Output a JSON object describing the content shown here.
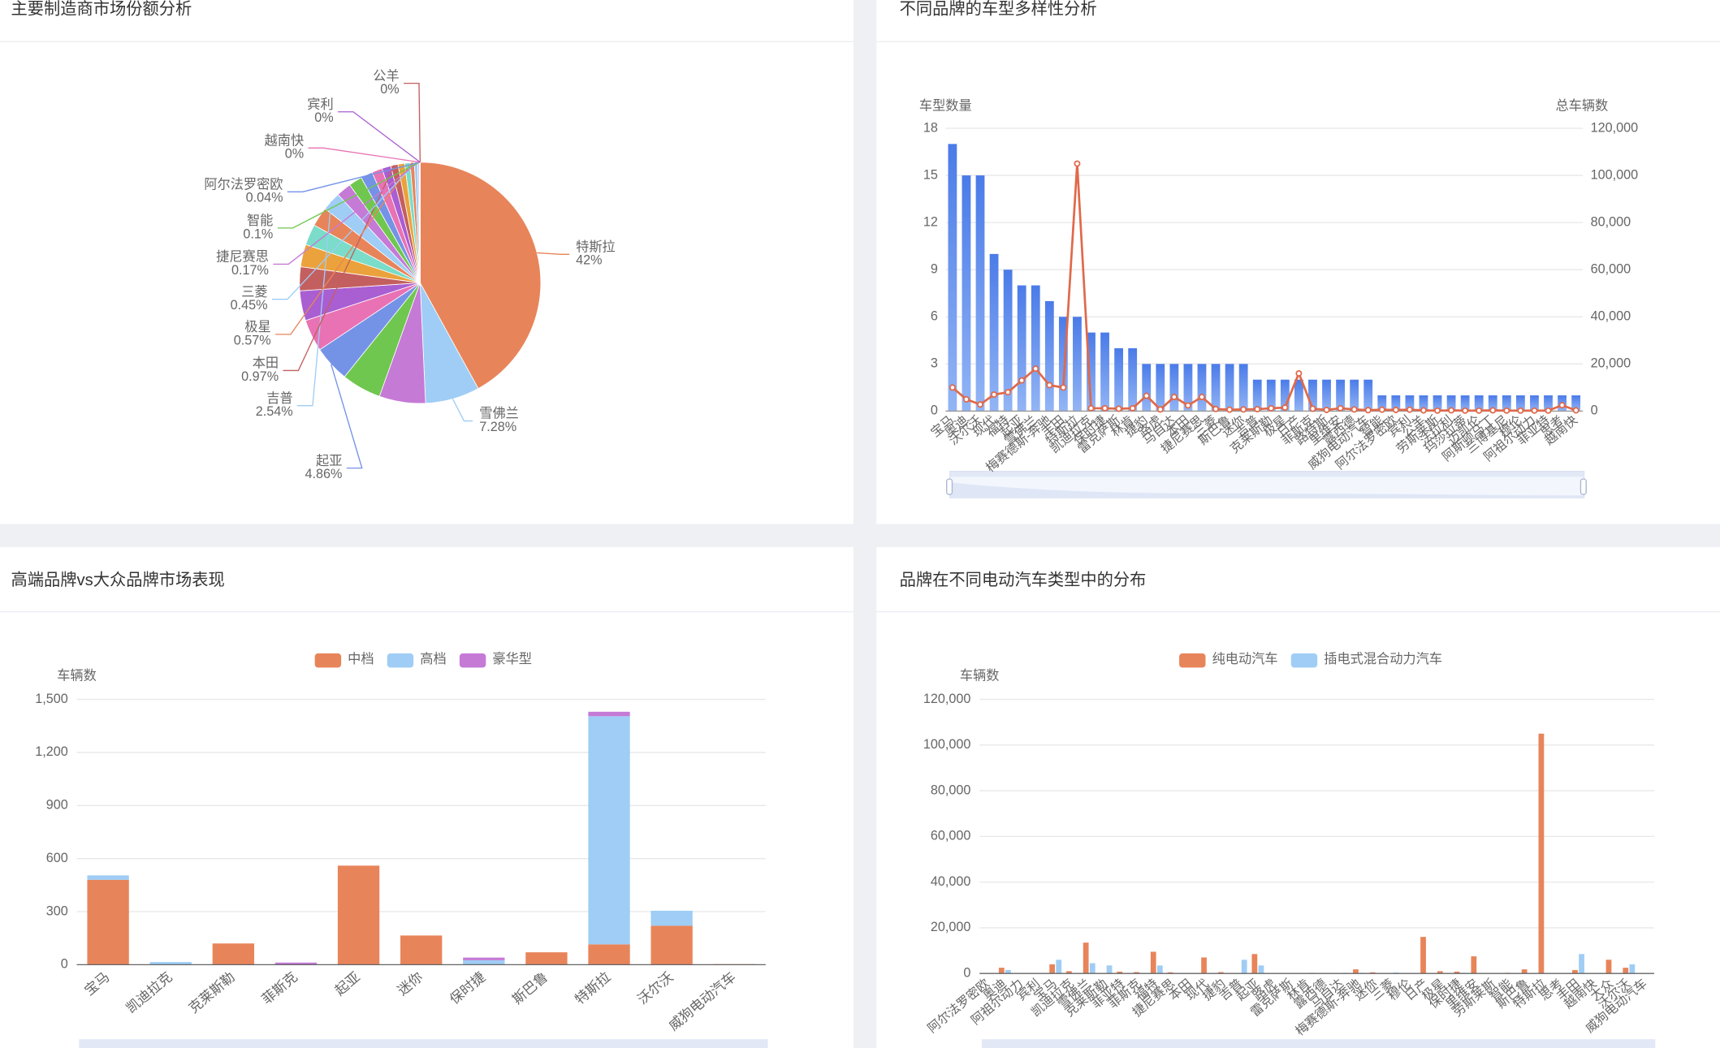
{
  "chart_data": [
    {
      "type": "pie",
      "title": "主要制造商市场份额分析",
      "categories": [
        "特斯拉",
        "雪佛兰",
        null,
        null,
        "起亚",
        null,
        null,
        null,
        null,
        null,
        null,
        "吉普",
        null,
        null,
        null,
        null,
        null,
        "本田",
        null,
        null,
        "极星",
        "三菱",
        "捷尼赛思",
        "智能",
        "阿尔法罗密欧",
        "越南快",
        "宾利",
        "公羊"
      ],
      "values": [
        42,
        7.28,
        6.2,
        5.3,
        4.86,
        4.3,
        4.0,
        3.2,
        3.0,
        2.8,
        2.6,
        2.54,
        2.0,
        1.8,
        1.6,
        1.4,
        1.2,
        0.97,
        0.9,
        0.72,
        0.57,
        0.45,
        0.17,
        0.1,
        0.04,
        0,
        0,
        0
      ],
      "value_labels": [
        "42%",
        "7.28%",
        null,
        null,
        "4.86%",
        null,
        null,
        null,
        null,
        null,
        null,
        "2.54%",
        null,
        null,
        null,
        null,
        null,
        "0.97%",
        null,
        null,
        "0.57%",
        "0.45%",
        "0.17%",
        "0.1%",
        "0.04%",
        "0%",
        "0%",
        "0%"
      ],
      "palette": [
        "#e8845a",
        "#9fcdf5",
        "#c57ad6",
        "#6fc74f",
        "#7593e6",
        "#e872b4",
        "#a95ed2",
        "#c45f5f",
        "#eba23c",
        "#7adcc9"
      ]
    },
    {
      "type": "bar",
      "title": "不同品牌的车型多样性分析",
      "y_label": "车型数量",
      "y2_label": "总车辆数",
      "categories": [
        "宝马",
        "奥迪",
        "沃尔沃",
        "现代",
        "福特",
        "起亚",
        "雪佛兰",
        "梅赛德斯-奔驰",
        "丰田",
        "特斯拉",
        "凯迪拉克",
        "保时捷",
        "雷克萨斯",
        "林肯",
        "捷豹",
        "路虎",
        "马自达",
        "本田",
        "捷尼赛思",
        "三菱",
        "斯巴鲁",
        "迷你",
        "吉普",
        "克莱斯勒",
        "极星",
        "日产",
        "菲斯克",
        "路特斯",
        "里维安",
        "露西德",
        "威狗电动汽车",
        "智能",
        "阿尔法罗密欧",
        "宾利",
        "公羊",
        "劳斯莱斯",
        "法拉利",
        "玛莎拉蒂",
        "迈凯伦",
        "阿斯顿马丁",
        "兰博基尼",
        "穆伦",
        "阿祖尔动力",
        "菲亚特",
        "思考",
        "越南快"
      ],
      "series": [
        {
          "type": "bar",
          "color": "#4a7be8",
          "values": [
            17,
            15,
            15,
            10,
            9,
            8,
            8,
            7,
            6,
            6,
            5,
            5,
            4,
            4,
            3,
            3,
            3,
            3,
            3,
            3,
            3,
            3,
            2,
            2,
            2,
            2,
            2,
            2,
            2,
            2,
            2,
            1,
            1,
            1,
            1,
            1,
            1,
            1,
            1,
            1,
            1,
            1,
            1,
            1,
            1,
            1
          ]
        },
        {
          "type": "line",
          "axis": "y2",
          "color": "#e0694a",
          "values": [
            10000,
            5000,
            2800,
            7000,
            8000,
            13000,
            18000,
            11000,
            10000,
            105000,
            1200,
            1200,
            1000,
            1200,
            6500,
            700,
            6000,
            2400,
            6000,
            900,
            600,
            700,
            800,
            1200,
            1500,
            16000,
            1000,
            500,
            1200,
            700,
            400,
            600,
            500,
            600,
            300,
            200,
            300,
            200,
            200,
            300,
            200,
            200,
            200,
            200,
            2500,
            300
          ]
        }
      ],
      "ylim": [
        0,
        18
      ],
      "yticks": [
        0,
        3,
        6,
        9,
        12,
        15,
        18
      ],
      "y2lim": [
        0,
        120000
      ],
      "y2ticks": [
        0,
        {
          "value": 20000,
          "label": "20,000"
        },
        {
          "value": 40000,
          "label": "40,000"
        },
        {
          "value": 60000,
          "label": "60,000"
        },
        {
          "value": 80000,
          "label": "80,000"
        },
        {
          "value": 100000,
          "label": "100,000"
        },
        {
          "value": 120000,
          "label": "120,000"
        }
      ],
      "grid": true
    },
    {
      "type": "stacked_bar",
      "title": "高端品牌vs大众品牌市场表现",
      "y_label": "车辆数",
      "categories": [
        "宝马",
        "凯迪拉克",
        "克莱斯勒",
        "菲斯克",
        "起亚",
        "迷你",
        "保时捷",
        "斯巴鲁",
        "特斯拉",
        "沃尔沃",
        "威狗电动汽车"
      ],
      "series": [
        {
          "name": "中档",
          "color": "#e8845a",
          "values": [
            480,
            0,
            120,
            0,
            560,
            165,
            0,
            70,
            115,
            220,
            3
          ]
        },
        {
          "name": "高档",
          "color": "#9fcdf5",
          "values": [
            25,
            15,
            0,
            0,
            0,
            0,
            25,
            0,
            1290,
            85,
            0
          ]
        },
        {
          "name": "豪华型",
          "color": "#c57ad6",
          "values": [
            0,
            0,
            0,
            12,
            0,
            0,
            15,
            0,
            25,
            0,
            0
          ]
        }
      ],
      "ylim": [
        0,
        1500
      ],
      "yticks": [
        0,
        300,
        600,
        900,
        {
          "value": 1200,
          "label": "1,200"
        },
        {
          "value": 1500,
          "label": "1,500"
        }
      ],
      "grid": true
    },
    {
      "type": "grouped_bar",
      "title": "品牌在不同电动汽车类型中的分布",
      "y_label": "车辆数",
      "categories": [
        "阿尔法罗密欧",
        "奥迪",
        "阿祖尔动力",
        "宾利",
        "宝马",
        "凯迪拉克",
        "雪佛兰",
        "克莱斯勒",
        "菲亚特",
        "菲斯克",
        "福特",
        "捷尼赛思",
        "本田",
        "现代",
        "捷豹",
        "吉普",
        "起亚",
        "路虎",
        "雷克萨斯",
        "林肯",
        "露西德",
        "马自达",
        "梅赛德斯-奔驰",
        "迷你",
        "三菱",
        "穆伦",
        "日产",
        "极星",
        "保时捷",
        "里维安",
        "劳斯莱斯",
        "智能",
        "斯巴鲁",
        "特斯拉",
        "思考",
        "丰田",
        "越南快",
        "大众",
        "沃尔沃",
        "威狗电动汽车"
      ],
      "series": [
        {
          "name": "纯电动汽车",
          "color": "#e8845a",
          "values": [
            0,
            2500,
            100,
            0,
            4000,
            1000,
            13500,
            0,
            800,
            600,
            9500,
            500,
            0,
            7000,
            600,
            0,
            8500,
            0,
            0,
            0,
            200,
            0,
            1800,
            500,
            0,
            0,
            16000,
            1000,
            800,
            7500,
            0,
            300,
            1800,
            105000,
            0,
            1500,
            0,
            6000,
            2500,
            0
          ]
        },
        {
          "name": "插电式混合动力汽车",
          "color": "#9fcdf5",
          "values": [
            100,
            1500,
            0,
            100,
            6000,
            0,
            4500,
            3500,
            0,
            0,
            3500,
            0,
            100,
            0,
            0,
            6000,
            3500,
            100,
            200,
            300,
            0,
            300,
            300,
            200,
            400,
            0,
            0,
            0,
            300,
            0,
            0,
            0,
            0,
            0,
            0,
            8500,
            0,
            0,
            4000,
            0
          ]
        }
      ],
      "ylim": [
        0,
        120000
      ],
      "yticks": [
        0,
        {
          "value": 20000,
          "label": "20,000"
        },
        {
          "value": 40000,
          "label": "40,000"
        },
        {
          "value": 60000,
          "label": "60,000"
        },
        {
          "value": 80000,
          "label": "80,000"
        },
        {
          "value": 100000,
          "label": "100,000"
        },
        {
          "value": 120000,
          "label": "120,000"
        }
      ],
      "grid": true
    }
  ]
}
